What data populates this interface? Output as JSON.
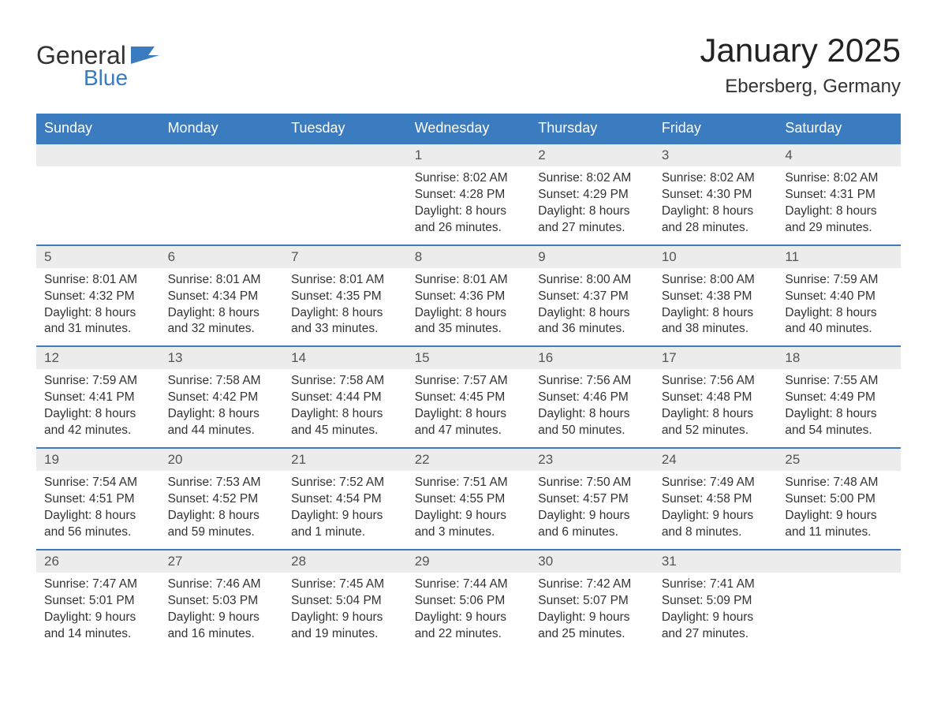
{
  "logo": {
    "text1": "General",
    "text2": "Blue"
  },
  "title": "January 2025",
  "location": "Ebersberg, Germany",
  "colors": {
    "header_bg": "#3b7bbf",
    "header_text": "#ffffff",
    "daynum_bg": "#ececec",
    "border": "#3b7bbf",
    "text": "#333333"
  },
  "weekdays": [
    "Sunday",
    "Monday",
    "Tuesday",
    "Wednesday",
    "Thursday",
    "Friday",
    "Saturday"
  ],
  "labels": {
    "sunrise": "Sunrise:",
    "sunset": "Sunset:",
    "daylight": "Daylight:"
  },
  "weeks": [
    [
      null,
      null,
      null,
      {
        "n": "1",
        "sunrise": "8:02 AM",
        "sunset": "4:28 PM",
        "daylight": "8 hours and 26 minutes."
      },
      {
        "n": "2",
        "sunrise": "8:02 AM",
        "sunset": "4:29 PM",
        "daylight": "8 hours and 27 minutes."
      },
      {
        "n": "3",
        "sunrise": "8:02 AM",
        "sunset": "4:30 PM",
        "daylight": "8 hours and 28 minutes."
      },
      {
        "n": "4",
        "sunrise": "8:02 AM",
        "sunset": "4:31 PM",
        "daylight": "8 hours and 29 minutes."
      }
    ],
    [
      {
        "n": "5",
        "sunrise": "8:01 AM",
        "sunset": "4:32 PM",
        "daylight": "8 hours and 31 minutes."
      },
      {
        "n": "6",
        "sunrise": "8:01 AM",
        "sunset": "4:34 PM",
        "daylight": "8 hours and 32 minutes."
      },
      {
        "n": "7",
        "sunrise": "8:01 AM",
        "sunset": "4:35 PM",
        "daylight": "8 hours and 33 minutes."
      },
      {
        "n": "8",
        "sunrise": "8:01 AM",
        "sunset": "4:36 PM",
        "daylight": "8 hours and 35 minutes."
      },
      {
        "n": "9",
        "sunrise": "8:00 AM",
        "sunset": "4:37 PM",
        "daylight": "8 hours and 36 minutes."
      },
      {
        "n": "10",
        "sunrise": "8:00 AM",
        "sunset": "4:38 PM",
        "daylight": "8 hours and 38 minutes."
      },
      {
        "n": "11",
        "sunrise": "7:59 AM",
        "sunset": "4:40 PM",
        "daylight": "8 hours and 40 minutes."
      }
    ],
    [
      {
        "n": "12",
        "sunrise": "7:59 AM",
        "sunset": "4:41 PM",
        "daylight": "8 hours and 42 minutes."
      },
      {
        "n": "13",
        "sunrise": "7:58 AM",
        "sunset": "4:42 PM",
        "daylight": "8 hours and 44 minutes."
      },
      {
        "n": "14",
        "sunrise": "7:58 AM",
        "sunset": "4:44 PM",
        "daylight": "8 hours and 45 minutes."
      },
      {
        "n": "15",
        "sunrise": "7:57 AM",
        "sunset": "4:45 PM",
        "daylight": "8 hours and 47 minutes."
      },
      {
        "n": "16",
        "sunrise": "7:56 AM",
        "sunset": "4:46 PM",
        "daylight": "8 hours and 50 minutes."
      },
      {
        "n": "17",
        "sunrise": "7:56 AM",
        "sunset": "4:48 PM",
        "daylight": "8 hours and 52 minutes."
      },
      {
        "n": "18",
        "sunrise": "7:55 AM",
        "sunset": "4:49 PM",
        "daylight": "8 hours and 54 minutes."
      }
    ],
    [
      {
        "n": "19",
        "sunrise": "7:54 AM",
        "sunset": "4:51 PM",
        "daylight": "8 hours and 56 minutes."
      },
      {
        "n": "20",
        "sunrise": "7:53 AM",
        "sunset": "4:52 PM",
        "daylight": "8 hours and 59 minutes."
      },
      {
        "n": "21",
        "sunrise": "7:52 AM",
        "sunset": "4:54 PM",
        "daylight": "9 hours and 1 minute."
      },
      {
        "n": "22",
        "sunrise": "7:51 AM",
        "sunset": "4:55 PM",
        "daylight": "9 hours and 3 minutes."
      },
      {
        "n": "23",
        "sunrise": "7:50 AM",
        "sunset": "4:57 PM",
        "daylight": "9 hours and 6 minutes."
      },
      {
        "n": "24",
        "sunrise": "7:49 AM",
        "sunset": "4:58 PM",
        "daylight": "9 hours and 8 minutes."
      },
      {
        "n": "25",
        "sunrise": "7:48 AM",
        "sunset": "5:00 PM",
        "daylight": "9 hours and 11 minutes."
      }
    ],
    [
      {
        "n": "26",
        "sunrise": "7:47 AM",
        "sunset": "5:01 PM",
        "daylight": "9 hours and 14 minutes."
      },
      {
        "n": "27",
        "sunrise": "7:46 AM",
        "sunset": "5:03 PM",
        "daylight": "9 hours and 16 minutes."
      },
      {
        "n": "28",
        "sunrise": "7:45 AM",
        "sunset": "5:04 PM",
        "daylight": "9 hours and 19 minutes."
      },
      {
        "n": "29",
        "sunrise": "7:44 AM",
        "sunset": "5:06 PM",
        "daylight": "9 hours and 22 minutes."
      },
      {
        "n": "30",
        "sunrise": "7:42 AM",
        "sunset": "5:07 PM",
        "daylight": "9 hours and 25 minutes."
      },
      {
        "n": "31",
        "sunrise": "7:41 AM",
        "sunset": "5:09 PM",
        "daylight": "9 hours and 27 minutes."
      },
      null
    ]
  ]
}
